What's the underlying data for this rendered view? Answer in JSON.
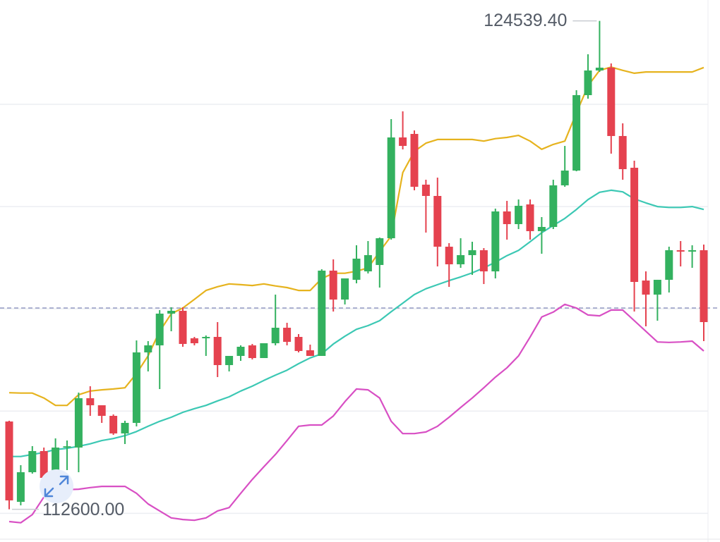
{
  "chart_data": {
    "type": "candlestick",
    "ylim": [
      111800,
      125050
    ],
    "yticks": [
      112500,
      115000,
      117500,
      120000,
      122500
    ],
    "grid": true,
    "up_color": "#33b15f",
    "down_color": "#e5424f",
    "open": [
      114746,
      112782,
      113506,
      114023,
      113368,
      114109,
      114109,
      115315,
      115143,
      114884,
      114454,
      114712,
      116435,
      116607,
      117383,
      117452,
      116780,
      116780,
      116814,
      116125,
      116349,
      116607,
      116297,
      116659,
      117038,
      116814,
      116487,
      116349,
      118434,
      117727,
      118210,
      118416,
      118572,
      119226,
      121690,
      121776,
      120536,
      120260,
      119019,
      118589,
      118813,
      118933,
      118416,
      119881,
      119571,
      120053,
      119399,
      119502,
      120519,
      120880,
      122724,
      123327,
      123396,
      121725,
      120949,
      118192,
      117848,
      118210,
      118933,
      118899,
      118933
    ],
    "high": [
      114764,
      113678,
      114144,
      114109,
      114333,
      114281,
      115453,
      115608,
      115143,
      114919,
      114764,
      116728,
      116711,
      117469,
      117538,
      117538,
      116814,
      116849,
      117176,
      116349,
      116607,
      116642,
      116659,
      117848,
      117159,
      116883,
      116625,
      118468,
      118709,
      118244,
      119054,
      119157,
      119243,
      122138,
      122328,
      121862,
      120656,
      120708,
      119106,
      119226,
      119140,
      118985,
      119950,
      120139,
      120174,
      120174,
      119743,
      120656,
      121483,
      122845,
      123723,
      124539.4,
      123499,
      122035,
      121122,
      118416,
      118210,
      119019,
      119157,
      119054,
      119071
    ],
    "low": [
      112600,
      112696,
      113471,
      113334,
      113334,
      113558,
      113506,
      114884,
      114712,
      114419,
      114195,
      114626,
      115970,
      115539,
      116952,
      116573,
      116607,
      116349,
      115832,
      115970,
      116228,
      116263,
      116297,
      116607,
      116607,
      116435,
      116349,
      116349,
      117434,
      117607,
      118124,
      118365,
      118020,
      119192,
      121397,
      120398,
      119364,
      118537,
      118037,
      118503,
      118330,
      118106,
      118244,
      119192,
      119450,
      119192,
      118847,
      119450,
      120484,
      120863,
      122638,
      123293,
      121294,
      120656,
      117434,
      117073,
      117210,
      117900,
      118537,
      118503,
      116711
    ],
    "close": [
      112817,
      113506,
      114023,
      113368,
      114109,
      114140,
      115315,
      115143,
      114884,
      114454,
      114712,
      116435,
      116607,
      117383,
      117452,
      116642,
      116659,
      116814,
      116125,
      116349,
      116573,
      116297,
      116659,
      117038,
      116693,
      116469,
      116349,
      118434,
      117727,
      118244,
      118727,
      118813,
      119226,
      121690,
      121483,
      120484,
      120260,
      119019,
      118589,
      118813,
      118933,
      118416,
      119881,
      119571,
      120019,
      119399,
      119502,
      120519,
      120880,
      122724,
      123327,
      123396,
      121725,
      120915,
      118158,
      117848,
      118210,
      118933,
      118899,
      118933,
      117176
    ],
    "overlays": [
      {
        "color": "#e6b31e",
        "values": [
          115450,
          115440,
          115440,
          115320,
          115140,
          115140,
          115400,
          115490,
          115520,
          115540,
          115570,
          115920,
          116350,
          116950,
          117380,
          117520,
          117730,
          117950,
          118040,
          118110,
          118090,
          118070,
          118110,
          118060,
          118020,
          117950,
          117950,
          118240,
          118370,
          118370,
          118420,
          118500,
          118900,
          119280,
          120830,
          121350,
          121550,
          121640,
          121640,
          121640,
          121640,
          121600,
          121660,
          121690,
          121740,
          121600,
          121400,
          121520,
          121600,
          122290,
          122950,
          123330,
          123410,
          123330,
          123260,
          123290,
          123290,
          123290,
          123290,
          123290,
          123400
        ]
      },
      {
        "color": "#3cc8b4",
        "values": [
          113890,
          113890,
          113940,
          113990,
          114060,
          114090,
          114140,
          114200,
          114280,
          114330,
          114400,
          114500,
          114630,
          114750,
          114850,
          114970,
          115060,
          115140,
          115250,
          115350,
          115490,
          115610,
          115750,
          115880,
          116000,
          116160,
          116300,
          116400,
          116640,
          116830,
          117000,
          117090,
          117210,
          117430,
          117640,
          117850,
          117990,
          118090,
          118190,
          118280,
          118380,
          118500,
          118640,
          118800,
          118930,
          119140,
          119360,
          119540,
          119710,
          119930,
          120170,
          120350,
          120400,
          120360,
          120190,
          120090,
          120000,
          119980,
          119980,
          120000,
          119930
        ]
      },
      {
        "color": "#d84fc4",
        "values": [
          112300,
          112270,
          112470,
          112900,
          113080,
          113080,
          113090,
          113130,
          113160,
          113160,
          113160,
          112990,
          112730,
          112560,
          112390,
          112350,
          112330,
          112390,
          112560,
          112640,
          112990,
          113330,
          113640,
          113940,
          114280,
          114630,
          114660,
          114660,
          114880,
          115230,
          115540,
          115520,
          115320,
          114750,
          114450,
          114450,
          114490,
          114630,
          114850,
          115090,
          115320,
          115570,
          115830,
          116060,
          116350,
          116810,
          117300,
          117420,
          117610,
          117520,
          117350,
          117330,
          117470,
          117470,
          117210,
          116950,
          116690,
          116680,
          116690,
          116710,
          116470
        ]
      }
    ],
    "price_line": 117520,
    "annotations": [
      {
        "value": 124539.4,
        "label": "124539.40"
      },
      {
        "value": 112600,
        "label": "112600.00"
      }
    ]
  }
}
